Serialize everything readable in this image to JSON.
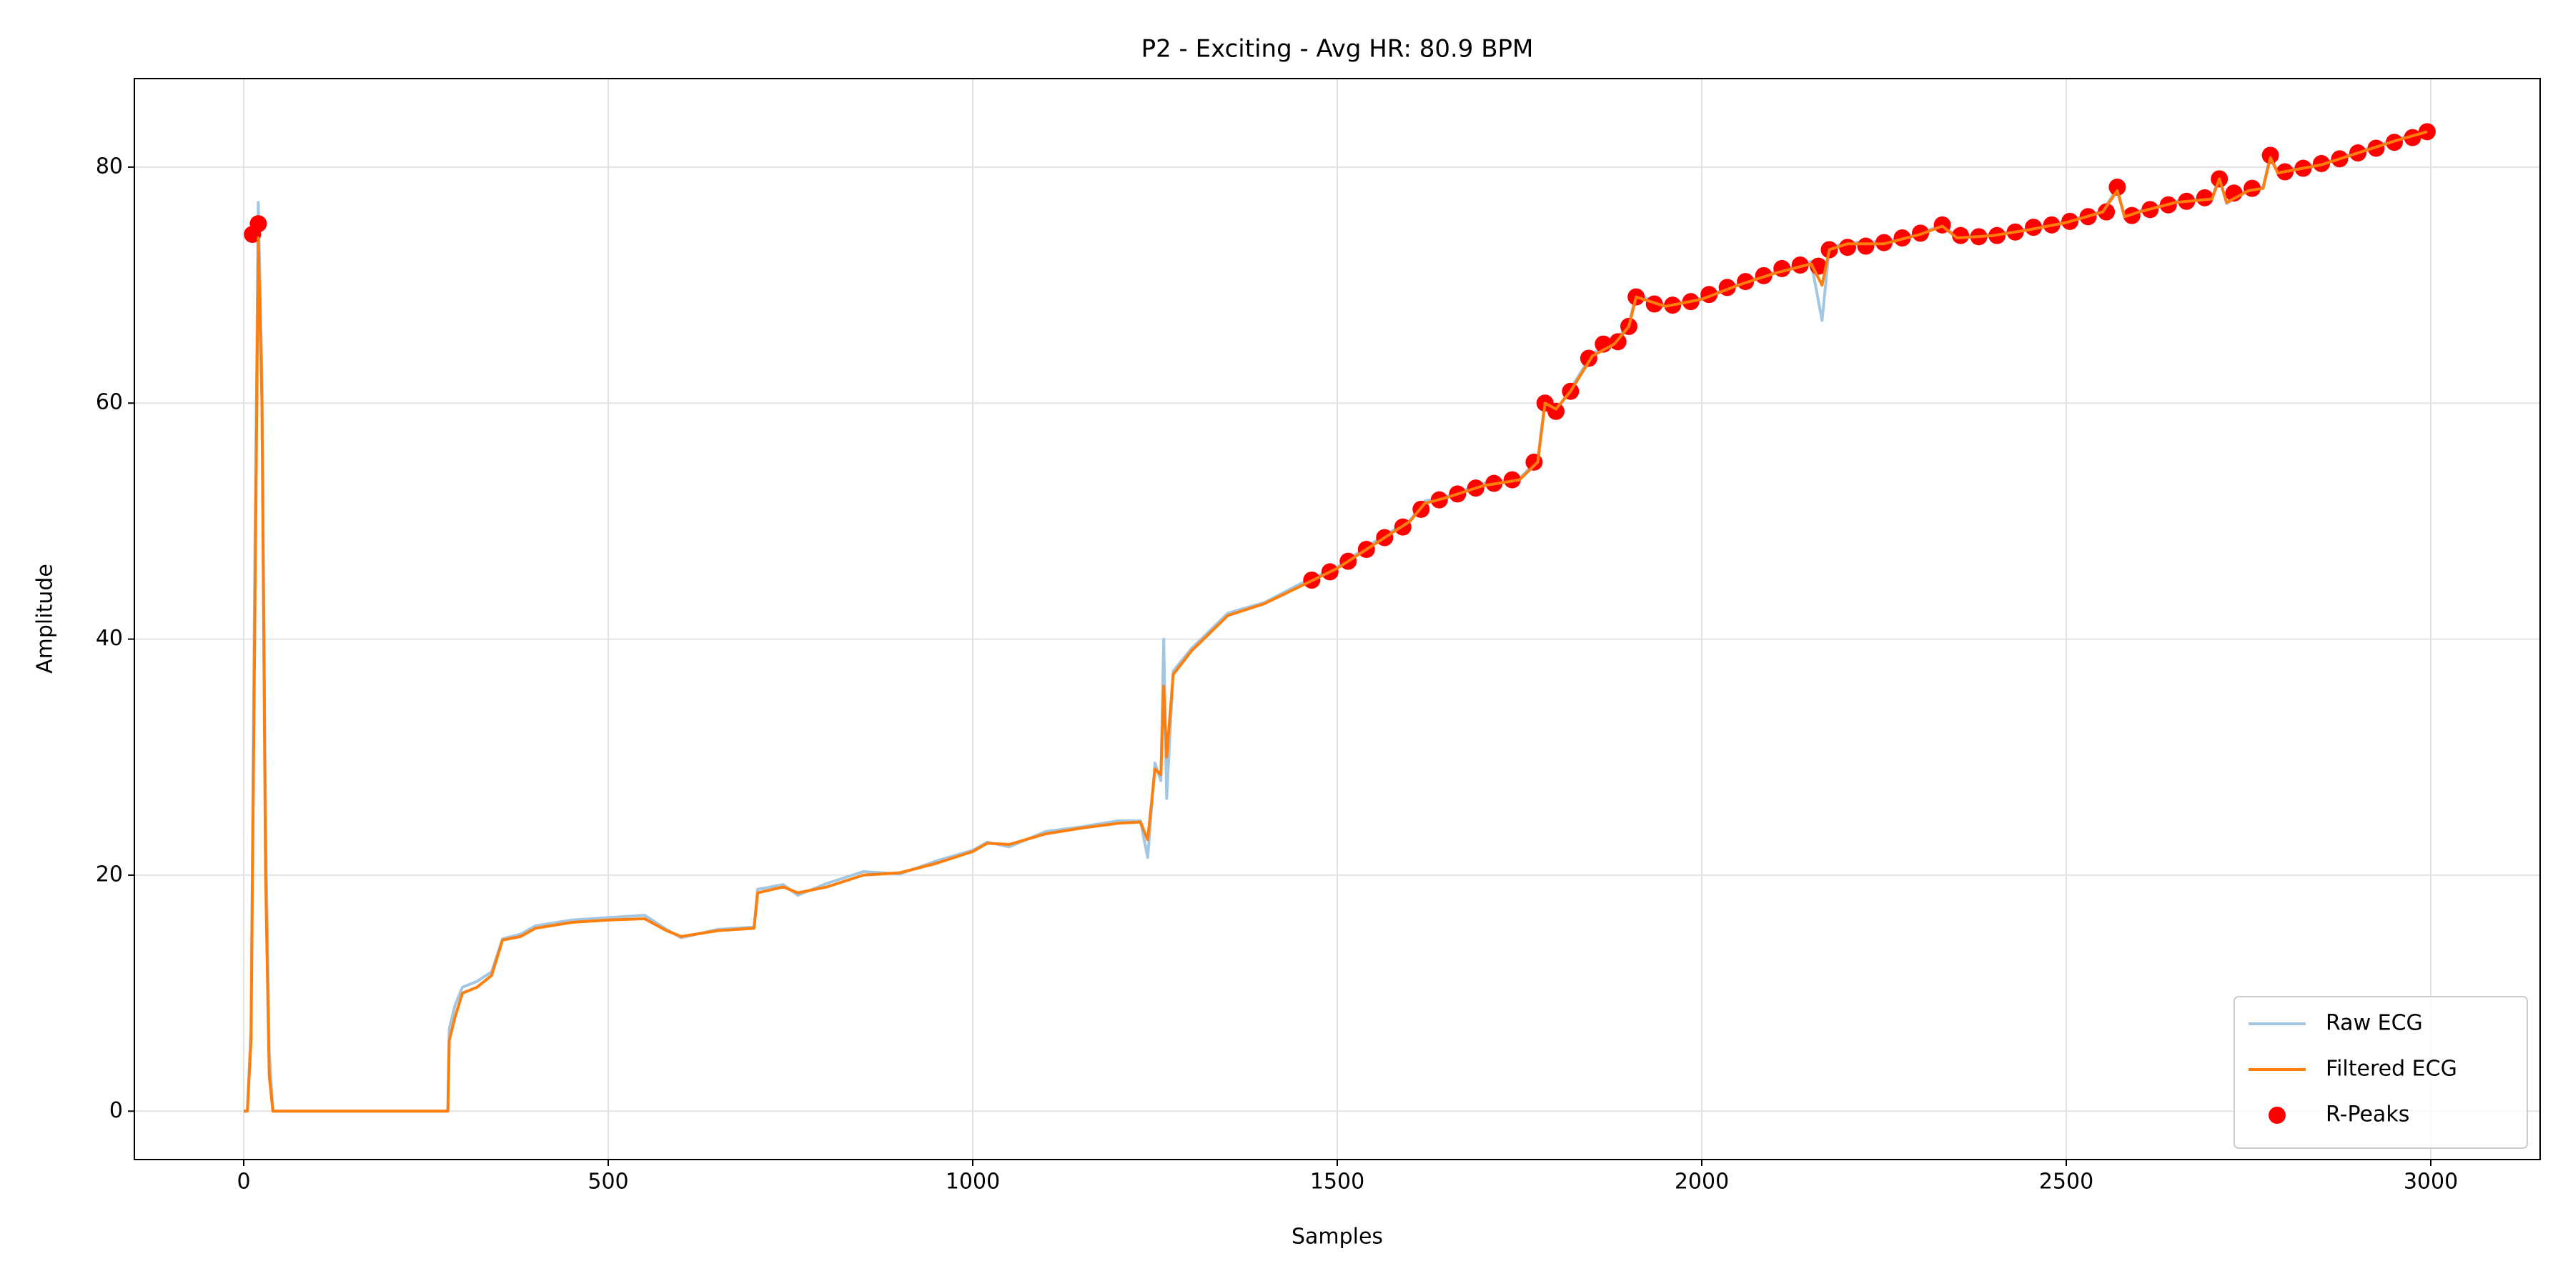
{
  "chart_data": {
    "type": "line",
    "title": "P2 - Exciting - Avg HR: 80.9 BPM",
    "xlabel": "Samples",
    "ylabel": "Amplitude",
    "xlim": [
      -150,
      3150
    ],
    "xticks": [
      0,
      500,
      1000,
      1500,
      2000,
      2500,
      3000
    ],
    "ylim": [
      -4.1,
      87.5
    ],
    "yticks": [
      0,
      20,
      40,
      60,
      80
    ],
    "grid": true,
    "legend": "lower right",
    "x": [
      0,
      5,
      10,
      15,
      20,
      25,
      30,
      35,
      40,
      100,
      200,
      280,
      282,
      290,
      300,
      320,
      340,
      355,
      380,
      400,
      450,
      500,
      550,
      580,
      600,
      650,
      700,
      705,
      740,
      760,
      800,
      850,
      900,
      950,
      1000,
      1020,
      1050,
      1100,
      1150,
      1200,
      1230,
      1240,
      1250,
      1258,
      1262,
      1266,
      1275,
      1300,
      1350,
      1400,
      1450,
      1500,
      1550,
      1600,
      1620,
      1650,
      1700,
      1750,
      1775,
      1785,
      1800,
      1820,
      1850,
      1880,
      1900,
      1910,
      1950,
      2000,
      2050,
      2100,
      2150,
      2165,
      2175,
      2200,
      2250,
      2300,
      2330,
      2350,
      2400,
      2450,
      2500,
      2550,
      2570,
      2580,
      2600,
      2650,
      2700,
      2710,
      2720,
      2750,
      2770,
      2780,
      2790,
      2850,
      2900,
      2950,
      2995
    ],
    "series": [
      {
        "name": "Raw ECG",
        "type": "line",
        "color": "#a3c6e2",
        "values": [
          0,
          0,
          7,
          45,
          77,
          62,
          24,
          5,
          0,
          0,
          0,
          0,
          7,
          9,
          10.5,
          11,
          11.8,
          14.6,
          15,
          15.7,
          16.2,
          16.4,
          16.6,
          15.4,
          14.7,
          15.4,
          15.6,
          18.8,
          19.2,
          18.3,
          19.3,
          20.3,
          20.1,
          21.2,
          22.1,
          22.8,
          22.4,
          23.7,
          24.1,
          24.6,
          24.6,
          21.5,
          29.5,
          28,
          40,
          26.5,
          37.3,
          39.2,
          42.2,
          43.1,
          44.7,
          46.1,
          48.2,
          50.1,
          51.7,
          52.1,
          53.2,
          53.6,
          55.2,
          60.2,
          59.3,
          61.2,
          64.2,
          65.2,
          66.7,
          69.2,
          68.3,
          68.9,
          70.1,
          71.1,
          72,
          67,
          73.2,
          73.6,
          73.7,
          74.4,
          75.1,
          74.1,
          74.3,
          74.8,
          75.4,
          76.3,
          78.2,
          75.7,
          76.3,
          77.1,
          77.4,
          79.2,
          76.9,
          78.1,
          78.3,
          81,
          79.6,
          80.3,
          81.3,
          82.3,
          83.1
        ]
      },
      {
        "name": "Filtered ECG",
        "type": "line",
        "color": "#ff7f0e",
        "values": [
          0,
          0,
          6,
          40,
          74,
          60,
          20,
          3,
          0,
          0,
          0,
          0,
          6,
          8,
          10,
          10.5,
          11.5,
          14.5,
          14.8,
          15.5,
          16,
          16.2,
          16.3,
          15.3,
          14.8,
          15.3,
          15.5,
          18.5,
          19,
          18.5,
          19,
          20,
          20.2,
          21,
          22,
          22.7,
          22.6,
          23.5,
          24,
          24.4,
          24.5,
          23,
          29,
          28.5,
          36,
          30,
          37,
          39,
          42,
          43,
          44.5,
          46,
          48,
          50,
          51.5,
          52,
          53,
          53.5,
          55,
          60,
          59.5,
          61,
          64,
          65,
          66.5,
          69,
          68.2,
          68.8,
          70,
          71,
          71.8,
          70,
          73,
          73.5,
          73.5,
          74.3,
          75,
          74,
          74.2,
          74.7,
          75.3,
          76.2,
          78,
          75.8,
          76.2,
          77,
          77.3,
          79,
          77,
          78,
          78.2,
          80.8,
          79.5,
          80.2,
          81.2,
          82.2,
          83
        ]
      },
      {
        "name": "R-Peaks",
        "type": "scatter",
        "color": "#ff0000",
        "x": [
          12,
          20,
          1465,
          1490,
          1515,
          1540,
          1565,
          1590,
          1615,
          1640,
          1665,
          1690,
          1715,
          1740,
          1770,
          1785,
          1800,
          1820,
          1845,
          1865,
          1885,
          1900,
          1910,
          1935,
          1960,
          1985,
          2010,
          2035,
          2060,
          2085,
          2110,
          2135,
          2160,
          2175,
          2200,
          2225,
          2250,
          2275,
          2300,
          2330,
          2355,
          2380,
          2405,
          2430,
          2455,
          2480,
          2505,
          2530,
          2555,
          2570,
          2590,
          2615,
          2640,
          2665,
          2690,
          2710,
          2730,
          2755,
          2780,
          2800,
          2825,
          2850,
          2875,
          2900,
          2925,
          2950,
          2975,
          2995
        ],
        "values": [
          74.3,
          75.2,
          45,
          45.7,
          46.6,
          47.6,
          48.6,
          49.5,
          51,
          51.8,
          52.3,
          52.8,
          53.2,
          53.5,
          55,
          60,
          59.3,
          61,
          63.8,
          65,
          65.2,
          66.5,
          69,
          68.4,
          68.3,
          68.6,
          69.2,
          69.8,
          70.3,
          70.8,
          71.4,
          71.7,
          71.6,
          73,
          73.2,
          73.3,
          73.6,
          74,
          74.4,
          75.1,
          74.2,
          74.1,
          74.2,
          74.5,
          74.9,
          75.1,
          75.4,
          75.8,
          76.2,
          78.3,
          75.9,
          76.4,
          76.8,
          77.1,
          77.4,
          79,
          77.8,
          78.2,
          81,
          79.6,
          79.9,
          80.3,
          80.7,
          81.2,
          81.6,
          82.1,
          82.5,
          83
        ]
      }
    ]
  }
}
